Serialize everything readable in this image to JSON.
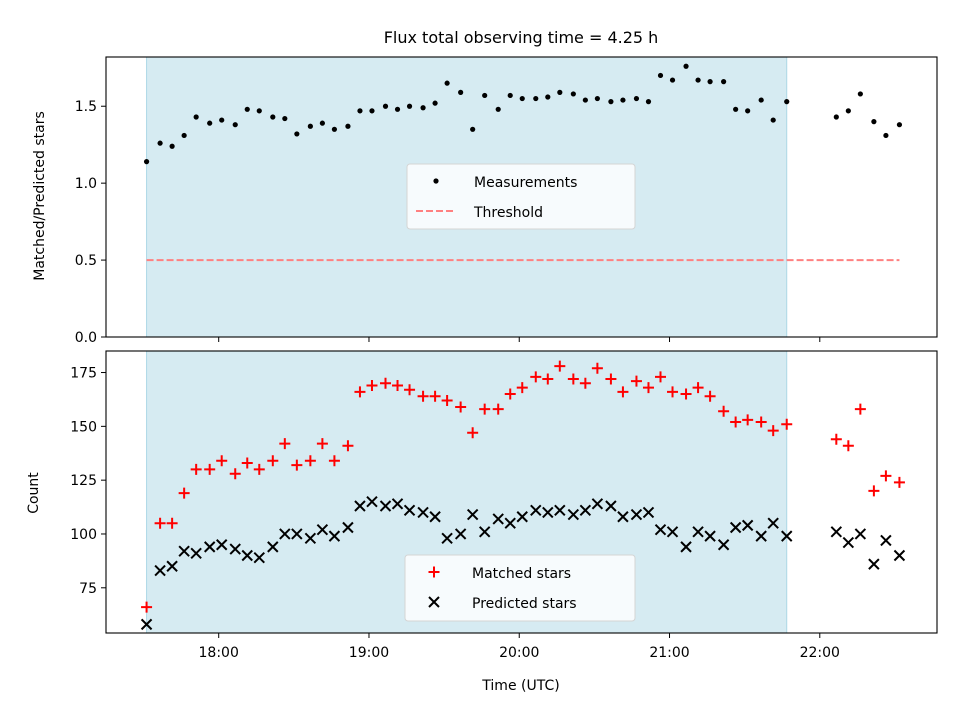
{
  "chart_data": [
    {
      "type": "scatter",
      "title": "Flux total observing time = 4.25 h",
      "xlabel": "",
      "ylabel": "Matched/Predicted stars",
      "xlim": [
        17.25,
        22.78
      ],
      "ylim": [
        0,
        1.82
      ],
      "yticks": [
        0.0,
        0.5,
        1.0,
        1.5
      ],
      "ytick_labels": [
        "0.0",
        "0.5",
        "1.0",
        "1.5"
      ],
      "xticks": [
        18,
        19,
        20,
        21,
        22
      ],
      "shaded_span": [
        17.52,
        21.78
      ],
      "legend": {
        "placement": "center",
        "entries": [
          "Measurements",
          "Threshold"
        ]
      },
      "threshold": {
        "name": "Threshold",
        "y": 0.5,
        "x": [
          17.52,
          22.53
        ]
      },
      "series": [
        {
          "name": "Measurements",
          "x": [
            17.52,
            17.61,
            17.69,
            17.77,
            17.85,
            17.94,
            18.02,
            18.11,
            18.19,
            18.27,
            18.36,
            18.44,
            18.52,
            18.61,
            18.69,
            18.77,
            18.86,
            18.94,
            19.02,
            19.11,
            19.19,
            19.27,
            19.36,
            19.44,
            19.52,
            19.61,
            19.69,
            19.77,
            19.86,
            19.94,
            20.02,
            20.11,
            20.19,
            20.27,
            20.36,
            20.44,
            20.52,
            20.61,
            20.69,
            20.78,
            20.86,
            20.94,
            21.02,
            21.11,
            21.19,
            21.27,
            21.36,
            21.44,
            21.52,
            21.61,
            21.69,
            21.78,
            22.11,
            22.19,
            22.27,
            22.36,
            22.44,
            22.53
          ],
          "values": [
            1.14,
            1.26,
            1.24,
            1.31,
            1.43,
            1.39,
            1.41,
            1.38,
            1.48,
            1.47,
            1.43,
            1.42,
            1.32,
            1.37,
            1.39,
            1.35,
            1.37,
            1.47,
            1.47,
            1.5,
            1.48,
            1.5,
            1.49,
            1.52,
            1.65,
            1.59,
            1.35,
            1.57,
            1.48,
            1.57,
            1.55,
            1.55,
            1.56,
            1.59,
            1.58,
            1.54,
            1.55,
            1.53,
            1.54,
            1.55,
            1.53,
            1.7,
            1.67,
            1.76,
            1.67,
            1.66,
            1.66,
            1.48,
            1.47,
            1.54,
            1.41,
            1.53,
            1.43,
            1.47,
            1.58,
            1.4,
            1.31,
            1.38
          ]
        }
      ]
    },
    {
      "type": "scatter",
      "title": "",
      "xlabel": "Time (UTC)",
      "ylabel": "Count",
      "xlim": [
        17.25,
        22.78
      ],
      "ylim": [
        54,
        185
      ],
      "yticks": [
        75,
        100,
        125,
        150,
        175
      ],
      "ytick_labels": [
        "75",
        "100",
        "125",
        "150",
        "175"
      ],
      "xticks": [
        18,
        19,
        20,
        21,
        22
      ],
      "xtick_labels": [
        "18:00",
        "19:00",
        "20:00",
        "21:00",
        "22:00"
      ],
      "shaded_span": [
        17.52,
        21.78
      ],
      "legend": {
        "placement": "lower center",
        "entries": [
          "Matched stars",
          "Predicted stars"
        ]
      },
      "x": [
        17.52,
        17.61,
        17.69,
        17.77,
        17.85,
        17.94,
        18.02,
        18.11,
        18.19,
        18.27,
        18.36,
        18.44,
        18.52,
        18.61,
        18.69,
        18.77,
        18.86,
        18.94,
        19.02,
        19.11,
        19.19,
        19.27,
        19.36,
        19.44,
        19.52,
        19.61,
        19.69,
        19.77,
        19.86,
        19.94,
        20.02,
        20.11,
        20.19,
        20.27,
        20.36,
        20.44,
        20.52,
        20.61,
        20.69,
        20.78,
        20.86,
        20.94,
        21.02,
        21.11,
        21.19,
        21.27,
        21.36,
        21.44,
        21.52,
        21.61,
        21.69,
        21.78,
        22.11,
        22.19,
        22.27,
        22.36,
        22.44,
        22.53
      ],
      "series": [
        {
          "name": "Matched stars",
          "marker": "+",
          "values": [
            66,
            105,
            105,
            119,
            130,
            130,
            134,
            128,
            133,
            130,
            134,
            142,
            132,
            134,
            142,
            134,
            141,
            166,
            169,
            170,
            169,
            167,
            164,
            164,
            162,
            159,
            147,
            158,
            158,
            165,
            168,
            173,
            172,
            178,
            172,
            170,
            177,
            172,
            166,
            171,
            168,
            173,
            166,
            165,
            168,
            164,
            157,
            152,
            153,
            152,
            148,
            151,
            144,
            141,
            158,
            120,
            127,
            124
          ]
        },
        {
          "name": "Predicted stars",
          "marker": "x",
          "values": [
            58,
            83,
            85,
            92,
            91,
            94,
            95,
            93,
            90,
            89,
            94,
            100,
            100,
            98,
            102,
            99,
            103,
            113,
            115,
            113,
            114,
            111,
            110,
            108,
            98,
            100,
            109,
            101,
            107,
            105,
            108,
            111,
            110,
            111,
            109,
            111,
            114,
            113,
            108,
            109,
            110,
            102,
            101,
            94,
            101,
            99,
            95,
            103,
            104,
            99,
            105,
            99,
            101,
            96,
            100,
            86,
            97,
            90
          ]
        }
      ]
    }
  ],
  "colors": {
    "span": "#add8e6",
    "measurements": "#000000",
    "threshold": "#ff8080",
    "matched": "#ff0000",
    "predicted": "#000000"
  }
}
